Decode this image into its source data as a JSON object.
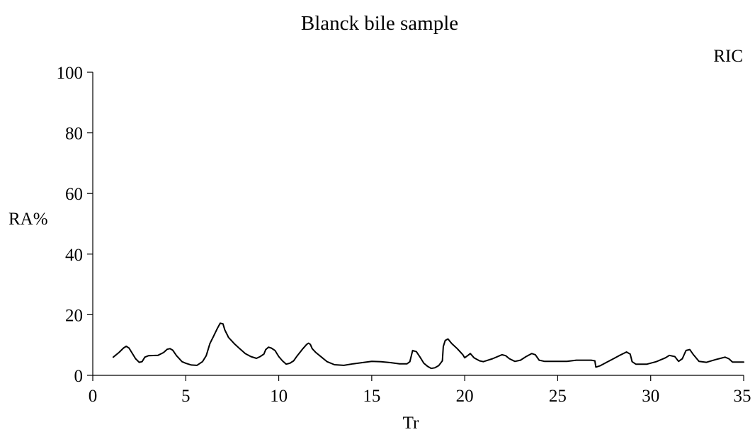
{
  "chart_data": {
    "type": "line",
    "title": "Blanck bile sample",
    "annotation": "RIC",
    "xlabel": "Tr",
    "ylabel": "RA%",
    "xlim": [
      0,
      35
    ],
    "ylim": [
      0,
      100
    ],
    "x_ticks": [
      0,
      5,
      10,
      15,
      20,
      25,
      30,
      35
    ],
    "y_ticks": [
      0,
      20,
      40,
      60,
      80,
      100
    ],
    "x_tick_labels": [
      "0",
      "5",
      "10",
      "15",
      "20",
      "25",
      "30",
      "35"
    ],
    "y_tick_labels": [
      "0",
      "20",
      "40",
      "60",
      "80",
      "100"
    ],
    "grid": false,
    "legend": false,
    "line_color": "#000000",
    "series": [
      {
        "points": [
          [
            1.1,
            6.0
          ],
          [
            1.4,
            7.5
          ],
          [
            1.65,
            9.0
          ],
          [
            1.8,
            9.6
          ],
          [
            1.95,
            9.0
          ],
          [
            2.1,
            7.5
          ],
          [
            2.3,
            5.5
          ],
          [
            2.5,
            4.3
          ],
          [
            2.65,
            4.5
          ],
          [
            2.8,
            6.0
          ],
          [
            3.0,
            6.5
          ],
          [
            3.5,
            6.6
          ],
          [
            3.8,
            7.5
          ],
          [
            4.0,
            8.6
          ],
          [
            4.15,
            8.8
          ],
          [
            4.3,
            8.3
          ],
          [
            4.5,
            6.5
          ],
          [
            4.8,
            4.5
          ],
          [
            5.0,
            4.0
          ],
          [
            5.3,
            3.4
          ],
          [
            5.6,
            3.3
          ],
          [
            5.9,
            4.5
          ],
          [
            6.1,
            6.5
          ],
          [
            6.3,
            10.5
          ],
          [
            6.5,
            13.0
          ],
          [
            6.7,
            15.5
          ],
          [
            6.85,
            17.2
          ],
          [
            7.0,
            17.0
          ],
          [
            7.1,
            15.0
          ],
          [
            7.3,
            12.5
          ],
          [
            7.6,
            10.5
          ],
          [
            7.9,
            8.8
          ],
          [
            8.2,
            7.2
          ],
          [
            8.5,
            6.2
          ],
          [
            8.8,
            5.6
          ],
          [
            9.0,
            6.2
          ],
          [
            9.2,
            7.0
          ],
          [
            9.3,
            8.5
          ],
          [
            9.45,
            9.3
          ],
          [
            9.6,
            9.0
          ],
          [
            9.8,
            8.2
          ],
          [
            10.0,
            6.2
          ],
          [
            10.2,
            4.8
          ],
          [
            10.4,
            3.7
          ],
          [
            10.6,
            4.0
          ],
          [
            10.8,
            4.8
          ],
          [
            11.0,
            6.5
          ],
          [
            11.3,
            8.8
          ],
          [
            11.5,
            10.2
          ],
          [
            11.6,
            10.6
          ],
          [
            11.7,
            10.2
          ],
          [
            11.8,
            8.8
          ],
          [
            12.0,
            7.5
          ],
          [
            12.3,
            6.0
          ],
          [
            12.6,
            4.5
          ],
          [
            13.0,
            3.5
          ],
          [
            13.5,
            3.3
          ],
          [
            14.0,
            3.8
          ],
          [
            14.5,
            4.2
          ],
          [
            15.0,
            4.6
          ],
          [
            15.5,
            4.5
          ],
          [
            16.0,
            4.2
          ],
          [
            16.5,
            3.8
          ],
          [
            16.9,
            3.8
          ],
          [
            17.05,
            4.5
          ],
          [
            17.2,
            8.2
          ],
          [
            17.4,
            7.8
          ],
          [
            17.6,
            6.0
          ],
          [
            17.8,
            4.0
          ],
          [
            18.0,
            3.0
          ],
          [
            18.2,
            2.3
          ],
          [
            18.4,
            2.5
          ],
          [
            18.6,
            3.2
          ],
          [
            18.8,
            4.8
          ],
          [
            18.85,
            9.5
          ],
          [
            18.95,
            11.5
          ],
          [
            19.1,
            12.0
          ],
          [
            19.3,
            10.5
          ],
          [
            19.6,
            8.8
          ],
          [
            19.9,
            6.8
          ],
          [
            20.0,
            5.8
          ],
          [
            20.2,
            6.7
          ],
          [
            20.3,
            7.2
          ],
          [
            20.5,
            5.8
          ],
          [
            20.8,
            4.8
          ],
          [
            21.0,
            4.5
          ],
          [
            21.5,
            5.5
          ],
          [
            22.0,
            6.8
          ],
          [
            22.2,
            6.5
          ],
          [
            22.4,
            5.5
          ],
          [
            22.7,
            4.6
          ],
          [
            23.0,
            5.0
          ],
          [
            23.3,
            6.2
          ],
          [
            23.6,
            7.2
          ],
          [
            23.8,
            6.8
          ],
          [
            24.0,
            5.0
          ],
          [
            24.3,
            4.6
          ],
          [
            25.5,
            4.6
          ],
          [
            26.0,
            5.0
          ],
          [
            26.8,
            5.0
          ],
          [
            27.0,
            4.8
          ],
          [
            27.05,
            2.7
          ],
          [
            27.3,
            3.2
          ],
          [
            27.6,
            4.2
          ],
          [
            28.0,
            5.5
          ],
          [
            28.3,
            6.5
          ],
          [
            28.7,
            7.7
          ],
          [
            28.9,
            7.0
          ],
          [
            29.0,
            4.5
          ],
          [
            29.2,
            3.7
          ],
          [
            29.8,
            3.7
          ],
          [
            30.3,
            4.5
          ],
          [
            30.8,
            5.8
          ],
          [
            31.0,
            6.6
          ],
          [
            31.3,
            6.2
          ],
          [
            31.5,
            4.6
          ],
          [
            31.7,
            5.5
          ],
          [
            31.9,
            8.2
          ],
          [
            32.1,
            8.5
          ],
          [
            32.3,
            6.8
          ],
          [
            32.6,
            4.6
          ],
          [
            33.0,
            4.3
          ],
          [
            33.5,
            5.2
          ],
          [
            34.0,
            6.0
          ],
          [
            34.2,
            5.5
          ],
          [
            34.4,
            4.4
          ],
          [
            35.0,
            4.4
          ]
        ]
      }
    ]
  }
}
